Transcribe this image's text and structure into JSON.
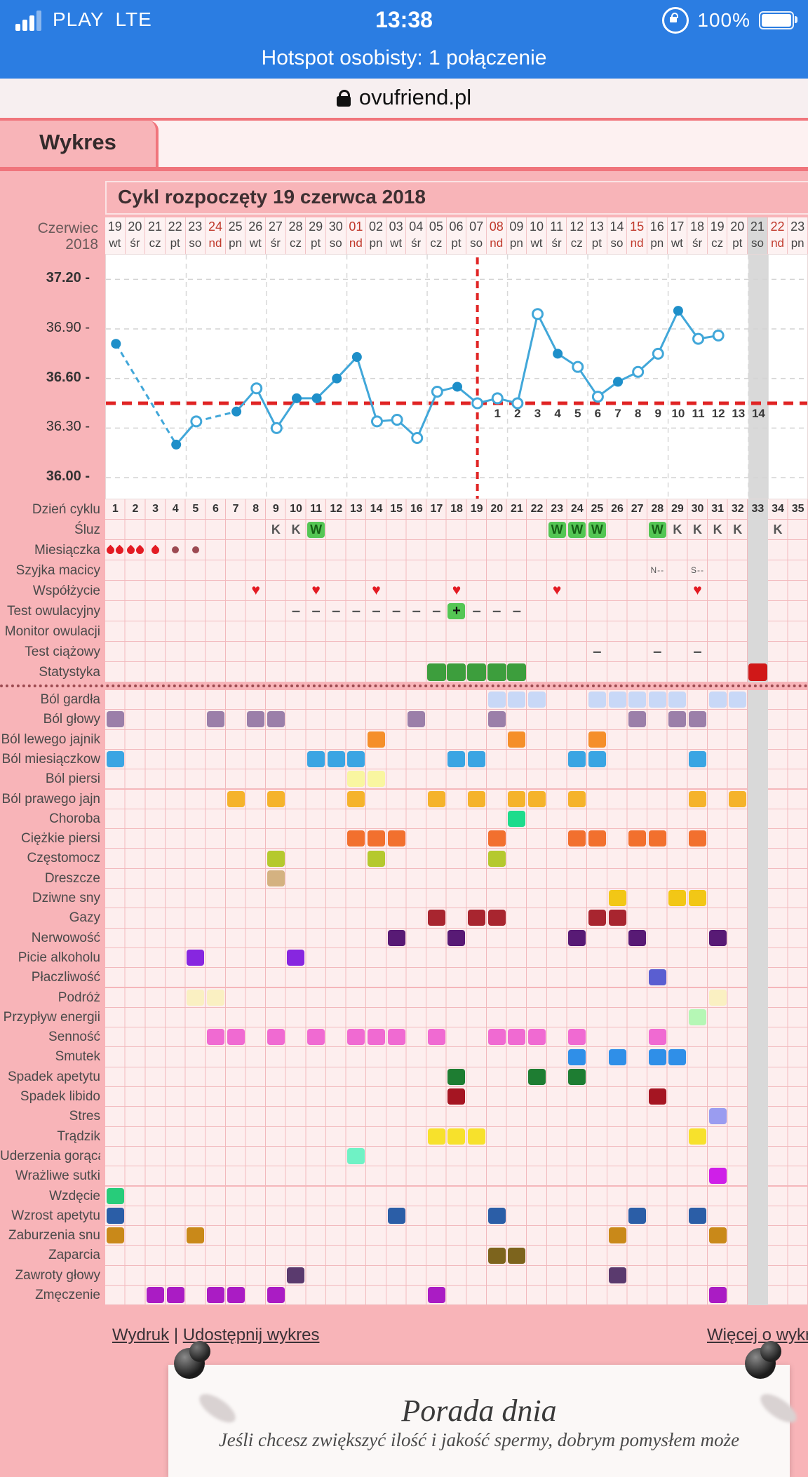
{
  "status_bar": {
    "carrier": "PLAY",
    "network": "LTE",
    "time": "13:38",
    "battery_percent": "100%"
  },
  "hotspot_bar": {
    "text": "Hotspot osobisty: 1 połączenie"
  },
  "url_bar": {
    "domain": "ovufriend.pl"
  },
  "tab": {
    "label": "Wykres"
  },
  "chart_header": {
    "title": "Cykl rozpoczęty 19 czerwca 2018"
  },
  "calendar": {
    "month_line1": "Czerwiec",
    "month_line2": "2018",
    "days": [
      {
        "day": 1,
        "date": "19",
        "weekday": "wt"
      },
      {
        "day": 2,
        "date": "20",
        "weekday": "śr"
      },
      {
        "day": 3,
        "date": "21",
        "weekday": "cz"
      },
      {
        "day": 4,
        "date": "22",
        "weekday": "pt"
      },
      {
        "day": 5,
        "date": "23",
        "weekday": "so"
      },
      {
        "day": 6,
        "date": "24",
        "weekday": "nd",
        "sunday": true
      },
      {
        "day": 7,
        "date": "25",
        "weekday": "pn"
      },
      {
        "day": 8,
        "date": "26",
        "weekday": "wt"
      },
      {
        "day": 9,
        "date": "27",
        "weekday": "śr"
      },
      {
        "day": 10,
        "date": "28",
        "weekday": "cz"
      },
      {
        "day": 11,
        "date": "29",
        "weekday": "pt"
      },
      {
        "day": 12,
        "date": "30",
        "weekday": "so"
      },
      {
        "day": 13,
        "date": "01",
        "weekday": "nd",
        "sunday": true
      },
      {
        "day": 14,
        "date": "02",
        "weekday": "pn"
      },
      {
        "day": 15,
        "date": "03",
        "weekday": "wt"
      },
      {
        "day": 16,
        "date": "04",
        "weekday": "śr"
      },
      {
        "day": 17,
        "date": "05",
        "weekday": "cz"
      },
      {
        "day": 18,
        "date": "06",
        "weekday": "pt"
      },
      {
        "day": 19,
        "date": "07",
        "weekday": "so"
      },
      {
        "day": 20,
        "date": "08",
        "weekday": "nd",
        "sunday": true
      },
      {
        "day": 21,
        "date": "09",
        "weekday": "pn"
      },
      {
        "day": 22,
        "date": "10",
        "weekday": "wt"
      },
      {
        "day": 23,
        "date": "11",
        "weekday": "śr"
      },
      {
        "day": 24,
        "date": "12",
        "weekday": "cz"
      },
      {
        "day": 25,
        "date": "13",
        "weekday": "pt"
      },
      {
        "day": 26,
        "date": "14",
        "weekday": "so"
      },
      {
        "day": 27,
        "date": "15",
        "weekday": "nd",
        "sunday": true
      },
      {
        "day": 28,
        "date": "16",
        "weekday": "pn"
      },
      {
        "day": 29,
        "date": "17",
        "weekday": "wt"
      },
      {
        "day": 30,
        "date": "18",
        "weekday": "śr"
      },
      {
        "day": 31,
        "date": "19",
        "weekday": "cz"
      },
      {
        "day": 32,
        "date": "20",
        "weekday": "pt"
      },
      {
        "day": 33,
        "date": "21",
        "weekday": "so",
        "today": true
      },
      {
        "day": 34,
        "date": "22",
        "weekday": "nd",
        "sunday": true
      },
      {
        "day": 35,
        "date": "23",
        "weekday": "pn"
      }
    ]
  },
  "chart_data": {
    "type": "line",
    "title": "Cykl rozpoczęty 19 czerwca 2018",
    "x_unit": "dzień cyklu",
    "yticks": [
      {
        "label": "37.20",
        "value": 37.2,
        "bold": true
      },
      {
        "label": "36.90",
        "value": 36.9,
        "bold": false
      },
      {
        "label": "36.60",
        "value": 36.6,
        "bold": true
      },
      {
        "label": "36.30",
        "value": 36.3,
        "bold": false
      },
      {
        "label": "36.00",
        "value": 36.0,
        "bold": true
      }
    ],
    "ylim": [
      35.94,
      37.36
    ],
    "xlim_days": [
      1,
      35
    ],
    "coverline_temp": 36.45,
    "ovulation_day": 19,
    "dpo_start_day": 20,
    "dpo_labels": [
      "1",
      "2",
      "3",
      "4",
      "5",
      "6",
      "7",
      "8",
      "9",
      "10",
      "11",
      "12",
      "13",
      "14"
    ],
    "today_day": 33,
    "missing_days": [
      2,
      3,
      6,
      32,
      33,
      34,
      35
    ],
    "points": [
      {
        "day": 1,
        "temp": 36.81,
        "filled": true
      },
      {
        "day": 4,
        "temp": 36.2,
        "filled": true
      },
      {
        "day": 5,
        "temp": 36.34,
        "filled": false
      },
      {
        "day": 7,
        "temp": 36.4,
        "filled": true
      },
      {
        "day": 8,
        "temp": 36.54,
        "filled": false
      },
      {
        "day": 9,
        "temp": 36.3,
        "filled": false
      },
      {
        "day": 10,
        "temp": 36.48,
        "filled": true
      },
      {
        "day": 11,
        "temp": 36.48,
        "filled": true
      },
      {
        "day": 12,
        "temp": 36.6,
        "filled": true
      },
      {
        "day": 13,
        "temp": 36.73,
        "filled": true
      },
      {
        "day": 14,
        "temp": 36.34,
        "filled": false
      },
      {
        "day": 15,
        "temp": 36.35,
        "filled": false
      },
      {
        "day": 16,
        "temp": 36.24,
        "filled": false
      },
      {
        "day": 17,
        "temp": 36.52,
        "filled": false
      },
      {
        "day": 18,
        "temp": 36.55,
        "filled": true
      },
      {
        "day": 19,
        "temp": 36.45,
        "filled": false
      },
      {
        "day": 20,
        "temp": 36.48,
        "filled": false
      },
      {
        "day": 21,
        "temp": 36.45,
        "filled": false
      },
      {
        "day": 22,
        "temp": 36.99,
        "filled": false
      },
      {
        "day": 23,
        "temp": 36.75,
        "filled": true
      },
      {
        "day": 24,
        "temp": 36.67,
        "filled": false
      },
      {
        "day": 25,
        "temp": 36.49,
        "filled": false
      },
      {
        "day": 26,
        "temp": 36.58,
        "filled": true
      },
      {
        "day": 27,
        "temp": 36.64,
        "filled": false
      },
      {
        "day": 28,
        "temp": 36.75,
        "filled": false
      },
      {
        "day": 29,
        "temp": 37.01,
        "filled": true
      },
      {
        "day": 30,
        "temp": 36.84,
        "filled": false
      },
      {
        "day": 31,
        "temp": 36.86,
        "filled": false
      }
    ]
  },
  "tracking_rows": {
    "labels": [
      "Dzień cyklu",
      "Śluz",
      "Miesiączka",
      "Szyjka macicy",
      "Współżycie",
      "Test owulacyjny",
      "Monitor owulacji",
      "Test ciążowy",
      "Statystyka"
    ],
    "cycle_day_count": 35,
    "mucus": [
      {
        "day": 9,
        "value": "K",
        "highlight": false
      },
      {
        "day": 10,
        "value": "K",
        "highlight": false
      },
      {
        "day": 11,
        "value": "W",
        "highlight": true
      },
      {
        "day": 23,
        "value": "W",
        "highlight": true
      },
      {
        "day": 24,
        "value": "W",
        "highlight": true
      },
      {
        "day": 25,
        "value": "W",
        "highlight": true
      },
      {
        "day": 28,
        "value": "W",
        "highlight": true
      },
      {
        "day": 29,
        "value": "K",
        "highlight": false
      },
      {
        "day": 30,
        "value": "K",
        "highlight": false
      },
      {
        "day": 31,
        "value": "K",
        "highlight": false
      },
      {
        "day": 32,
        "value": "K",
        "highlight": false
      },
      {
        "day": 34,
        "value": "K",
        "highlight": false
      }
    ],
    "menstruation": [
      {
        "day": 1,
        "intensity": "heavy"
      },
      {
        "day": 2,
        "intensity": "heavy"
      },
      {
        "day": 3,
        "intensity": "medium"
      },
      {
        "day": 4,
        "intensity": "spotting"
      },
      {
        "day": 5,
        "intensity": "spotting"
      }
    ],
    "cervix": [
      {
        "day": 28,
        "value": "N--"
      },
      {
        "day": 30,
        "value": "S--"
      }
    ],
    "intercourse_days": [
      8,
      11,
      14,
      18,
      23,
      30
    ],
    "ovulation_test": [
      {
        "day": 10,
        "value": "-"
      },
      {
        "day": 11,
        "value": "-"
      },
      {
        "day": 12,
        "value": "-"
      },
      {
        "day": 13,
        "value": "-"
      },
      {
        "day": 14,
        "value": "-"
      },
      {
        "day": 15,
        "value": "-"
      },
      {
        "day": 16,
        "value": "-"
      },
      {
        "day": 17,
        "value": "-"
      },
      {
        "day": 18,
        "value": "+"
      },
      {
        "day": 19,
        "value": "-"
      },
      {
        "day": 20,
        "value": "-"
      },
      {
        "day": 21,
        "value": "-"
      }
    ],
    "ovulation_monitor": [],
    "pregnancy_test": [
      {
        "day": 25,
        "value": "-"
      },
      {
        "day": 28,
        "value": "-"
      },
      {
        "day": 30,
        "value": "-"
      }
    ],
    "statistics": {
      "green_days": [
        17,
        18,
        19,
        20,
        21
      ],
      "red_days": [
        33
      ]
    }
  },
  "symptoms": {
    "rows": [
      {
        "label": "Ból gardła",
        "color": "#c8d8f7",
        "days": [
          20,
          21,
          22,
          25,
          26,
          27,
          28,
          29,
          31,
          32
        ]
      },
      {
        "label": "Ból głowy",
        "color": "#9b7fa9",
        "days": [
          1,
          6,
          8,
          9,
          16,
          20,
          27,
          29,
          30
        ]
      },
      {
        "label": "Ból lewego jajnik",
        "color": "#f58f2a",
        "days": [
          14,
          21,
          25
        ]
      },
      {
        "label": "Ból miesiączkow",
        "color": "#3aa5e3",
        "days": [
          1,
          11,
          12,
          13,
          18,
          19,
          24,
          25,
          30
        ]
      },
      {
        "label": "Ból piersi",
        "color": "#f9f6a0",
        "days": [
          13,
          14
        ]
      },
      {
        "label": "Ból prawego jajn",
        "color": "#f5b32b",
        "days": [
          7,
          9,
          13,
          17,
          19,
          21,
          22,
          24,
          30,
          32
        ]
      },
      {
        "label": "Choroba",
        "color": "#1ddc8c",
        "days": [
          21
        ]
      },
      {
        "label": "Ciężkie piersi",
        "color": "#f2702e",
        "days": [
          13,
          14,
          15,
          20,
          24,
          25,
          27,
          28,
          30
        ]
      },
      {
        "label": "Częstomocz",
        "color": "#b5c92e",
        "days": [
          9,
          14,
          20
        ]
      },
      {
        "label": "Dreszcze",
        "color": "#d4b281",
        "days": [
          9
        ]
      },
      {
        "label": "Dziwne sny",
        "color": "#f2c716",
        "days": [
          26,
          29,
          30
        ]
      },
      {
        "label": "Gazy",
        "color": "#a8252f",
        "days": [
          17,
          19,
          20,
          25,
          26
        ]
      },
      {
        "label": "Nerwowość",
        "color": "#581a75",
        "days": [
          15,
          18,
          24,
          27,
          31
        ]
      },
      {
        "label": "Picie alkoholu",
        "color": "#8726e0",
        "days": [
          5,
          10
        ]
      },
      {
        "label": "Płaczliwość",
        "color": "#5a5ed1",
        "days": [
          28
        ]
      },
      {
        "label": "Podróż",
        "color": "#faf0c2",
        "days": [
          5,
          6,
          31
        ]
      },
      {
        "label": "Przypływ energii",
        "color": "#b5f7b5",
        "days": [
          30
        ]
      },
      {
        "label": "Senność",
        "color": "#f06ad2",
        "days": [
          6,
          7,
          9,
          11,
          13,
          14,
          15,
          17,
          20,
          21,
          22,
          24,
          28
        ]
      },
      {
        "label": "Smutek",
        "color": "#2f8fe8",
        "days": [
          24,
          26,
          28,
          29
        ]
      },
      {
        "label": "Spadek apetytu",
        "color": "#1e7d32",
        "days": [
          18,
          22,
          24
        ]
      },
      {
        "label": "Spadek libido",
        "color": "#a51522",
        "days": [
          18,
          28
        ]
      },
      {
        "label": "Stres",
        "color": "#9a9cf0",
        "days": [
          31
        ]
      },
      {
        "label": "Trądzik",
        "color": "#f7e12c",
        "days": [
          17,
          18,
          19,
          30
        ]
      },
      {
        "label": "Uderzenia gorąca",
        "color": "#6ff2c5",
        "days": [
          13
        ]
      },
      {
        "label": "Wrażliwe sutki",
        "color": "#cf1fe8",
        "days": [
          31
        ]
      },
      {
        "label": "Wzdęcie",
        "color": "#27cc7a",
        "days": [
          1
        ]
      },
      {
        "label": "Wzrost apetytu",
        "color": "#2b5ea7",
        "days": [
          1,
          15,
          20,
          27,
          30
        ]
      },
      {
        "label": "Zaburzenia snu",
        "color": "#c98919",
        "days": [
          1,
          5,
          26,
          31
        ]
      },
      {
        "label": "Zaparcia",
        "color": "#7d641d",
        "days": [
          20,
          21
        ]
      },
      {
        "label": "Zawroty głowy",
        "color": "#5a3a6e",
        "days": [
          10,
          26
        ]
      },
      {
        "label": "Zmęczenie",
        "color": "#aa1cc4",
        "days": [
          3,
          4,
          6,
          7,
          9,
          17,
          31
        ]
      }
    ]
  },
  "footer_links": {
    "print": "Wydruk",
    "separator": "|",
    "share": "Udostępnij wykres",
    "more": "Więcej o wykre"
  },
  "tip_card": {
    "title": "Porada dnia",
    "text": "Jeśli chcesz zwiększyć ilość i jakość spermy, dobrym pomysłem może"
  },
  "colors": {
    "topbar_blue": "#2b7de2",
    "page_pink": "#f8b4b8",
    "accent_red_border": "#f0757c",
    "grid_line_pink": "#f2b9bd",
    "table_bg": "#fdeeee",
    "temp_line_blue": "#41a7d9",
    "temp_dot_fill": "#1e8fc9",
    "coverline_red": "#e02424",
    "today_gray": "#d9d9d9",
    "mucus_green": "#54c654",
    "stats_green": "#3d9e3d",
    "stats_red": "#d01818",
    "heart_red": "#e31b23",
    "sunday_red": "#c0392b"
  }
}
